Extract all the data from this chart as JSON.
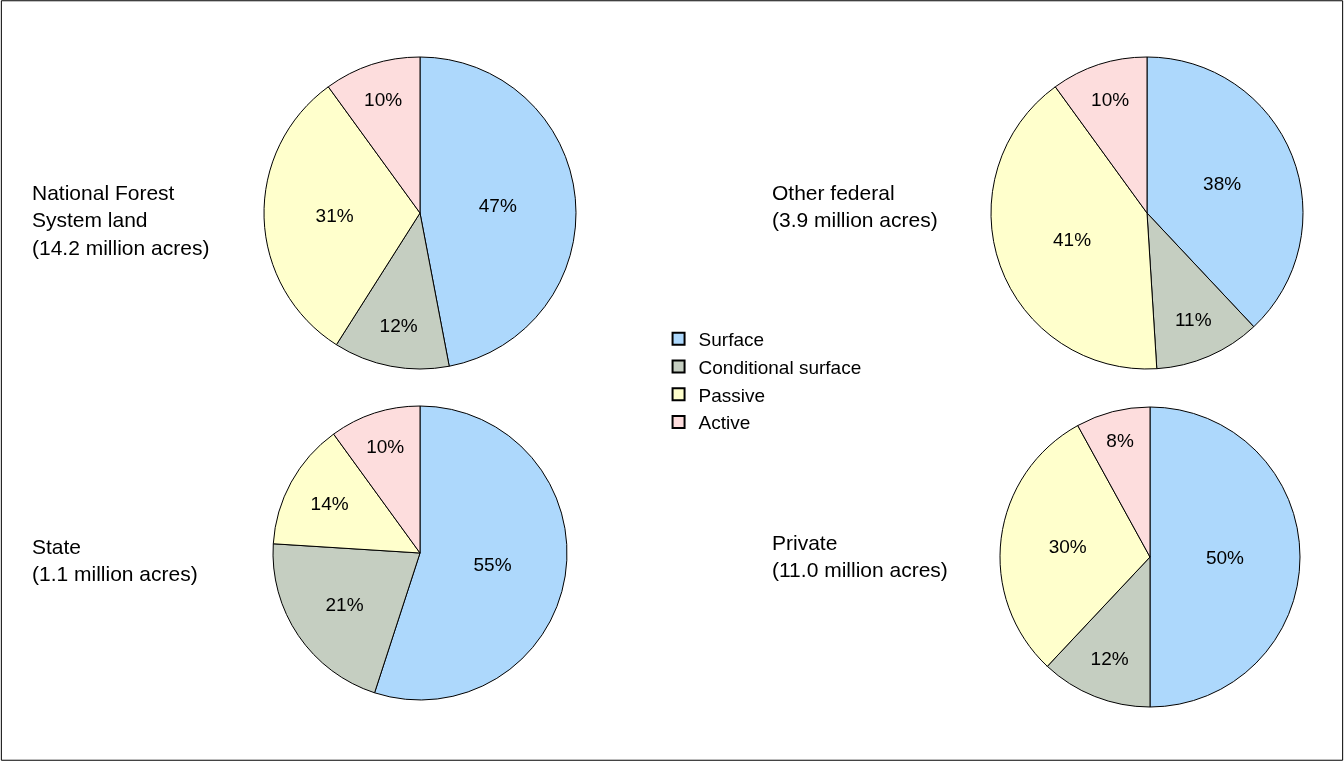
{
  "chart_data": [
    {
      "type": "pie",
      "title": "National Forest\nSystem land\n(14.2 million acres)",
      "categories": [
        "Surface",
        "Conditional surface",
        "Passive",
        "Active"
      ],
      "values": [
        47,
        12,
        31,
        10
      ],
      "value_labels": [
        "47%",
        "12%",
        "31%",
        "10%"
      ],
      "colors": [
        "#add8fc",
        "#c5cec1",
        "#ffffcc",
        "#fddddd"
      ],
      "legend": "right"
    },
    {
      "type": "pie",
      "title": "Other federal\n(3.9 million acres)",
      "categories": [
        null,
        null,
        null,
        null
      ],
      "values": [
        38,
        11,
        41,
        10
      ],
      "value_labels": [
        "38%",
        "11%",
        "41%",
        "10%"
      ],
      "colors": [
        "#add8fc",
        "#c5cec1",
        "#ffffcc",
        "#fddddd"
      ]
    },
    {
      "type": "pie",
      "title": "State\n(1.1 million acres)",
      "categories": [
        null,
        null,
        null,
        null
      ],
      "values": [
        55,
        21,
        14,
        10
      ],
      "value_labels": [
        "55%",
        "21%",
        "14%",
        "10%"
      ],
      "colors": [
        "#add8fc",
        "#c5cec1",
        "#ffffcc",
        "#fddddd"
      ]
    },
    {
      "type": "pie",
      "title": "Private\n(11.0 million acres)",
      "categories": [
        null,
        null,
        null,
        null
      ],
      "values": [
        50,
        12,
        30,
        8
      ],
      "value_labels": [
        "50%",
        "12%",
        "30%",
        "8%"
      ],
      "colors": [
        "#add8fc",
        "#c5cec1",
        "#ffffcc",
        "#fddddd"
      ]
    }
  ]
}
